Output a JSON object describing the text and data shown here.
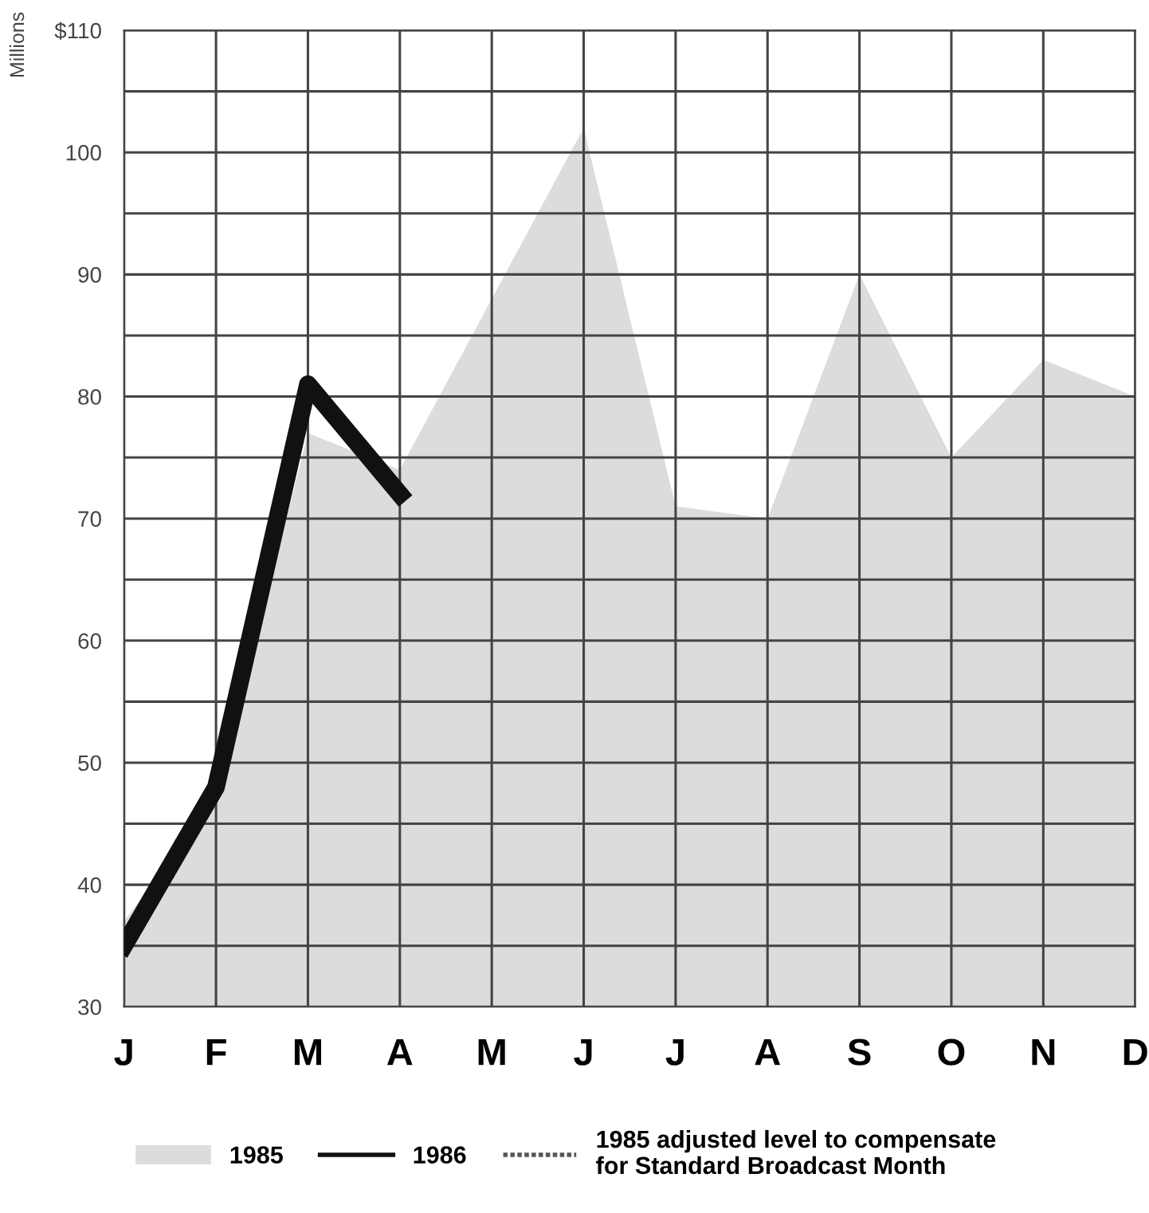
{
  "chart_data": {
    "type": "line",
    "ylabel": "Millions",
    "categories": [
      "J",
      "F",
      "M",
      "A",
      "M",
      "J",
      "J",
      "A",
      "S",
      "O",
      "N",
      "D"
    ],
    "series": [
      {
        "name": "1985",
        "type": "area",
        "color": "#dcdcdc",
        "values": [
          37,
          47,
          77,
          74,
          88,
          102,
          71,
          70,
          90,
          75,
          83,
          80
        ]
      },
      {
        "name": "1986",
        "color": "#111111",
        "values": [
          35,
          48,
          81,
          72,
          null,
          null,
          null,
          null,
          null,
          null,
          null,
          null
        ]
      },
      {
        "name": "1985 adjusted level to compensate\nfor Standard Broadcast Month",
        "type": "line",
        "line_style": "dotted",
        "color": "#555555",
        "values": [
          null,
          null,
          null,
          null,
          null,
          null,
          null,
          null,
          null,
          null,
          null,
          null
        ]
      }
    ],
    "ylim": [
      30,
      110
    ],
    "yticks": [
      30,
      {
        "value": 35,
        "label": null
      },
      40,
      {
        "value": 45,
        "label": null
      },
      50,
      {
        "value": 55,
        "label": null
      },
      60,
      {
        "value": 65,
        "label": null
      },
      70,
      {
        "value": 75,
        "label": null
      },
      80,
      {
        "value": 85,
        "label": null
      },
      90,
      {
        "value": 95,
        "label": null
      },
      100,
      {
        "value": 105,
        "label": null
      },
      {
        "value": 110,
        "label": "$110"
      }
    ],
    "grid": true,
    "legend": "bottom"
  }
}
